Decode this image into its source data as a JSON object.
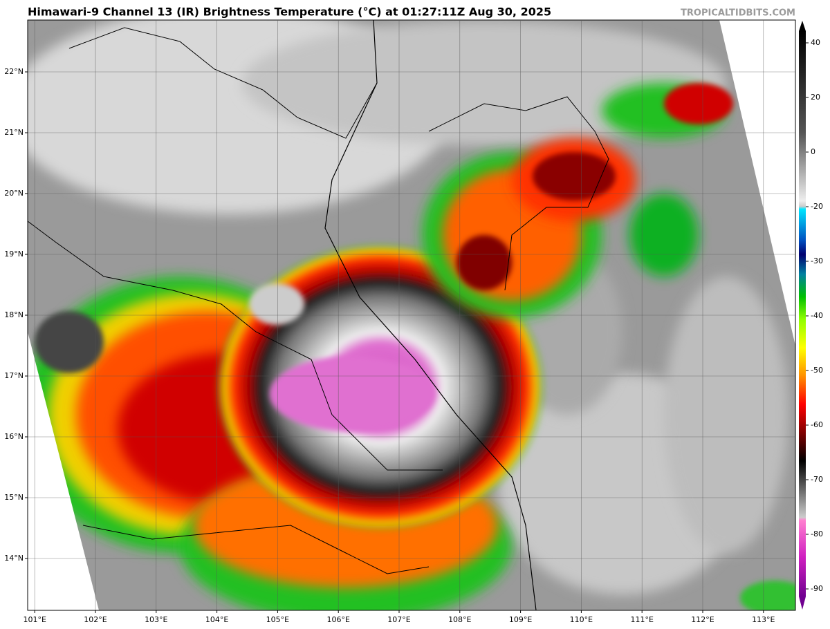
{
  "header": {
    "title": "Himawari-9 Channel 13 (IR) Brightness Temperature (°C) at 01:27:11Z Aug 30, 2025",
    "credit": "TROPICALTIDBITS.COM"
  },
  "map": {
    "lat_ticks": [
      {
        "value": 22,
        "label": "22°N"
      },
      {
        "value": 21,
        "label": "21°N"
      },
      {
        "value": 20,
        "label": "20°N"
      },
      {
        "value": 19,
        "label": "19°N"
      },
      {
        "value": 18,
        "label": "18°N"
      },
      {
        "value": 17,
        "label": "17°N"
      },
      {
        "value": 16,
        "label": "16°N"
      },
      {
        "value": 15,
        "label": "15°N"
      },
      {
        "value": 14,
        "label": "14°N"
      }
    ],
    "lon_ticks": [
      {
        "value": 101,
        "label": "101°E"
      },
      {
        "value": 102,
        "label": "102°E"
      },
      {
        "value": 103,
        "label": "103°E"
      },
      {
        "value": 104,
        "label": "104°E"
      },
      {
        "value": 105,
        "label": "105°E"
      },
      {
        "value": 106,
        "label": "106°E"
      },
      {
        "value": 107,
        "label": "107°E"
      },
      {
        "value": 108,
        "label": "108°E"
      },
      {
        "value": 109,
        "label": "109°E"
      },
      {
        "value": 110,
        "label": "110°E"
      },
      {
        "value": 111,
        "label": "111°E"
      },
      {
        "value": 112,
        "label": "112°E"
      },
      {
        "value": 113,
        "label": "113°E"
      }
    ]
  },
  "colorbar": {
    "ticks": [
      40,
      20,
      0,
      -20,
      -30,
      -40,
      -50,
      -60,
      -70,
      -80,
      -90
    ]
  }
}
